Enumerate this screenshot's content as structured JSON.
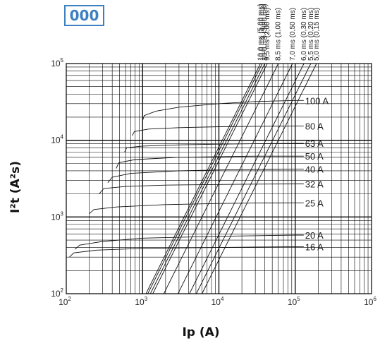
{
  "badge": {
    "text": "000",
    "color": "#3d80c1"
  },
  "chart_data": {
    "type": "line",
    "title": "",
    "xlabel": "Ip (A)",
    "ylabel": "I²t (A²s)",
    "x_scale": "log",
    "y_scale": "log",
    "xlim": [
      100,
      1000000
    ],
    "ylim": [
      100,
      100000
    ],
    "grid": true,
    "x_ticks": [
      {
        "base": "10",
        "exp": "2"
      },
      {
        "base": "10",
        "exp": "3"
      },
      {
        "base": "10",
        "exp": "4"
      },
      {
        "base": "10",
        "exp": "5"
      },
      {
        "base": "10",
        "exp": "6"
      }
    ],
    "y_ticks": [
      {
        "base": "10",
        "exp": "2"
      },
      {
        "base": "10",
        "exp": "3"
      },
      {
        "base": "10",
        "exp": "4"
      },
      {
        "base": "10",
        "exp": "5"
      }
    ],
    "series": [
      {
        "name": "100 A",
        "x": [
          1000,
          1050,
          1500,
          3000,
          10000,
          30000,
          100000
        ],
        "y": [
          18000,
          21000,
          24000,
          27000,
          30000,
          32000,
          33000
        ]
      },
      {
        "name": "80 A",
        "x": [
          730,
          780,
          1200,
          3000,
          10000,
          30000,
          100000
        ],
        "y": [
          11500,
          13000,
          14000,
          14600,
          15000,
          15200,
          15300
        ]
      },
      {
        "name": "63 A",
        "x": [
          580,
          620,
          1000,
          3000,
          10000,
          30000,
          100000
        ],
        "y": [
          7000,
          8000,
          8400,
          8700,
          8900,
          9000,
          9100
        ]
      },
      {
        "name": "50 A",
        "x": [
          450,
          490,
          800,
          3000,
          10000,
          30000,
          100000
        ],
        "y": [
          4300,
          5100,
          5600,
          6000,
          6100,
          6200,
          6200
        ]
      },
      {
        "name": "40 A",
        "x": [
          350,
          400,
          700,
          3000,
          10000,
          30000,
          100000
        ],
        "y": [
          2800,
          3300,
          3700,
          4000,
          4100,
          4150,
          4200
        ]
      },
      {
        "name": "32 A",
        "x": [
          270,
          310,
          600,
          2000,
          10000,
          30000,
          100000
        ],
        "y": [
          2000,
          2350,
          2500,
          2600,
          2650,
          2680,
          2700
        ]
      },
      {
        "name": "25 A",
        "x": [
          200,
          230,
          450,
          2000,
          10000,
          30000,
          100000
        ],
        "y": [
          1100,
          1250,
          1350,
          1450,
          1500,
          1520,
          1530
        ]
      },
      {
        "name": "20 A",
        "x": [
          130,
          150,
          300,
          1000,
          10000,
          30000,
          100000
        ],
        "y": [
          380,
          430,
          480,
          530,
          560,
          570,
          580
        ]
      },
      {
        "name": "16 A",
        "x": [
          110,
          125,
          250,
          1000,
          10000,
          30000,
          100000
        ],
        "y": [
          300,
          340,
          370,
          390,
          400,
          405,
          410
        ]
      }
    ],
    "time_lines": [
      {
        "label": "10,0 ms (5,00 ms)",
        "x_at_ymax": 35000
      },
      {
        "label": "10,0 ms (4,00 ms)",
        "x_at_ymax": 37000
      },
      {
        "label": "10,0 ms (3,00 ms)",
        "x_at_ymax": 40000
      },
      {
        "label": "9,5 ms (2,00 ms)",
        "x_at_ymax": 43000
      },
      {
        "label": "8,5 ms (1,00 ms)",
        "x_at_ymax": 60000
      },
      {
        "label": "7,0 ms (0,50 ms)",
        "x_at_ymax": 92000
      },
      {
        "label": "6,0 ms (0,30 ms)",
        "x_at_ymax": 130000
      },
      {
        "label": "5,5 ms (0,20 ms)",
        "x_at_ymax": 160000
      },
      {
        "label": "5,0 ms (0,15 ms)",
        "x_at_ymax": 190000
      }
    ]
  }
}
